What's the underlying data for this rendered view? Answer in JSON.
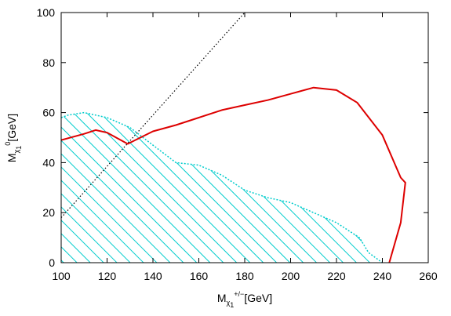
{
  "chart_data": {
    "type": "line",
    "xlabel": {
      "base": "M",
      "sub": "χ",
      "subsub": "1",
      "sup": "+/−",
      "unit": "[GeV]"
    },
    "ylabel": {
      "base": "M",
      "sub": "χ",
      "subsub": "1",
      "sup": "0",
      "unit": "[GeV]"
    },
    "xlim": [
      100,
      260
    ],
    "ylim": [
      0,
      100
    ],
    "xticks": [
      100,
      120,
      140,
      160,
      180,
      200,
      220,
      240,
      260
    ],
    "yticks": [
      0,
      20,
      40,
      60,
      80,
      100
    ],
    "grid": false,
    "legend": "none",
    "series": [
      {
        "kind": "diagonal-dotted",
        "color": "#000000",
        "x": [
          100,
          180
        ],
        "y": [
          18,
          100
        ]
      },
      {
        "kind": "hatched-region",
        "color": "#00cccc",
        "x": [
          100,
          103,
          110,
          120,
          130,
          140,
          150,
          160,
          170,
          180,
          190,
          200,
          210,
          220,
          230,
          234,
          240
        ],
        "y": [
          58,
          59,
          60,
          58,
          54,
          47,
          40,
          39,
          35,
          29,
          26,
          24,
          20,
          16,
          10,
          4,
          0
        ]
      },
      {
        "kind": "contour",
        "color": "#dd0000",
        "x": [
          100,
          110,
          115,
          120,
          129,
          140,
          150,
          160,
          170,
          180,
          190,
          200,
          210,
          220,
          229,
          240,
          248,
          250,
          248,
          243
        ],
        "y": [
          49,
          51.5,
          53,
          52,
          47.5,
          52.5,
          55,
          58,
          61,
          63,
          65,
          67.5,
          70,
          69,
          64,
          51,
          34,
          32,
          16,
          0
        ]
      }
    ]
  }
}
